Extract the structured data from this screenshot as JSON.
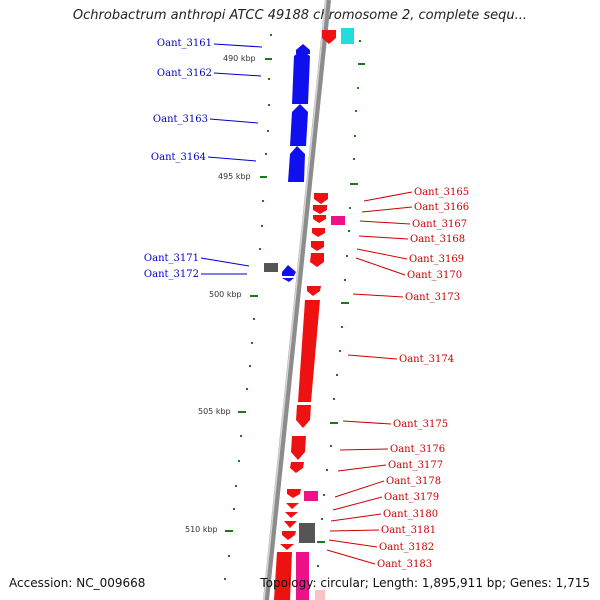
{
  "title": "Ochrobactrum anthropi ATCC 49188 chromosome 2, complete sequ...",
  "accession": "Accession: NC_009668",
  "topology": "Topology: circular; Length: 1,895,911 bp; Genes: 1,715",
  "scale_labels": [
    "490 kbp",
    "495 kbp",
    "500 kbp",
    "505 kbp",
    "510 kbp"
  ],
  "colors": {
    "forward": "#1010ee",
    "reverse": "#ee1111",
    "pink": "#ee1188",
    "gray": "#555555",
    "cyan": "#22dddd",
    "tick": "#1a7a1a",
    "backbone": "#8c8c8c"
  },
  "left_labels": [
    "Oant_3161",
    "Oant_3162",
    "Oant_3163",
    "Oant_3164",
    "Oant_3171",
    "Oant_3172"
  ],
  "right_labels": [
    "Oant_3165",
    "Oant_3166",
    "Oant_3167",
    "Oant_3168",
    "Oant_3169",
    "Oant_3170",
    "Oant_3173",
    "Oant_3174",
    "Oant_3175",
    "Oant_3176",
    "Oant_3177",
    "Oant_3178",
    "Oant_3179",
    "Oant_3180",
    "Oant_3181",
    "Oant_3182",
    "Oant_3183"
  ]
}
